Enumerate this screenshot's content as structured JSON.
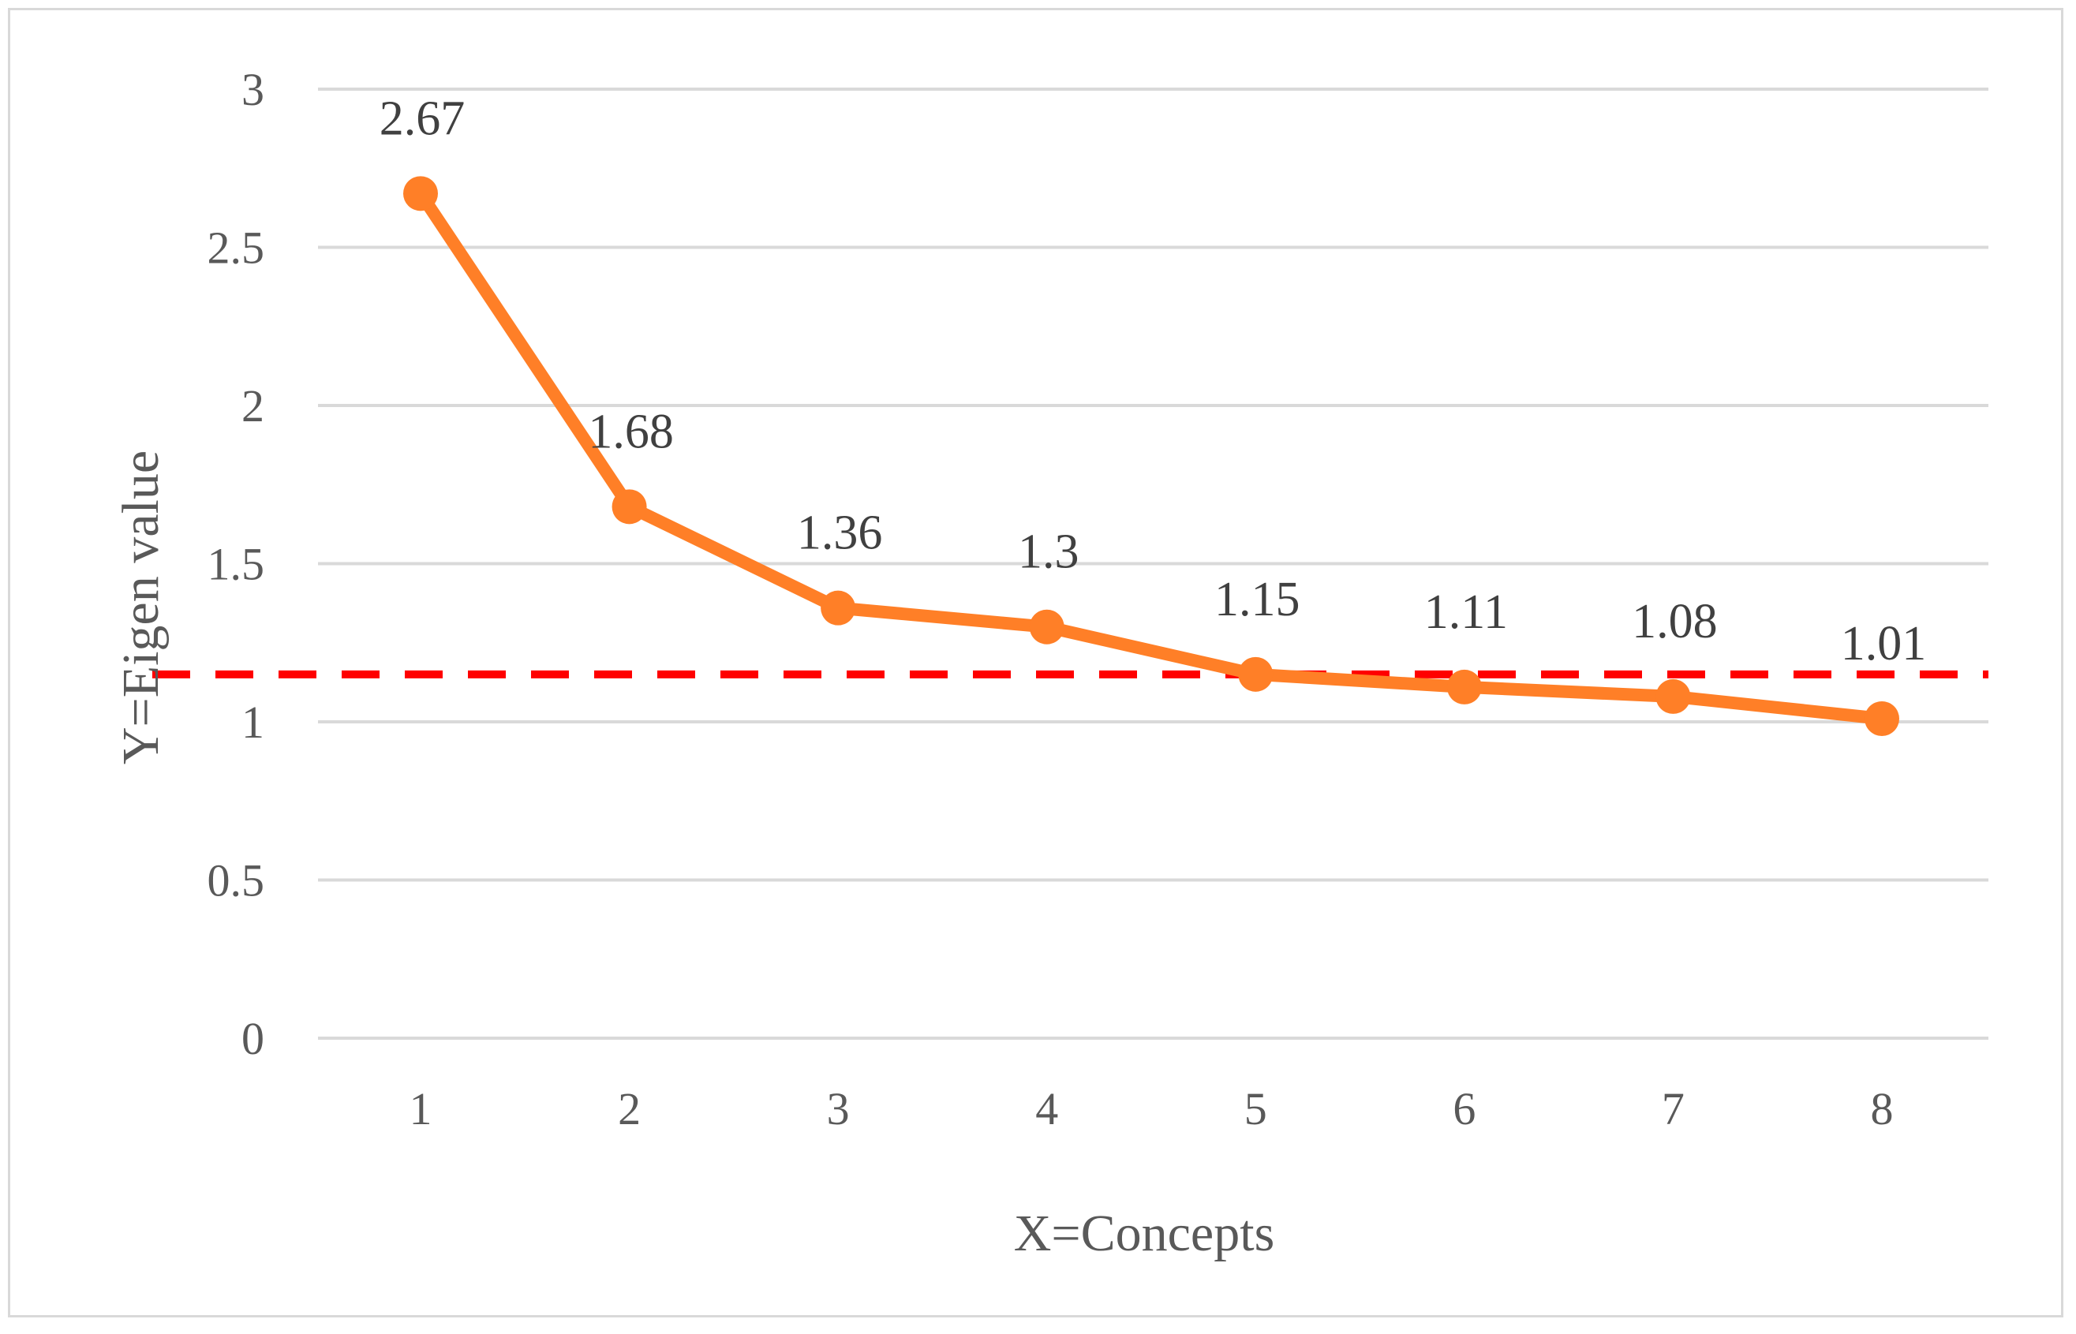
{
  "chart_data": {
    "type": "line",
    "x": [
      1,
      2,
      3,
      4,
      5,
      6,
      7,
      8
    ],
    "series": [
      {
        "values": [
          2.67,
          1.68,
          1.36,
          1.3,
          1.15,
          1.11,
          1.08,
          1.01
        ],
        "color": "#ff7f27"
      }
    ],
    "data_labels": [
      "2.67",
      "1.68",
      "1.36",
      "1.3",
      "1.15",
      "1.11",
      "1.08",
      "1.01"
    ],
    "reference_line": {
      "value": 1.15,
      "color": "#ff0000",
      "style": "dashed"
    },
    "xlabel": "X=Concepts",
    "ylabel": "Y=Eigen value",
    "ylim": [
      0,
      3
    ],
    "yticks": [
      0,
      0.5,
      1,
      1.5,
      2,
      2.5,
      3
    ],
    "grid": true,
    "gridline_color": "#d9d9d9",
    "legend": "none"
  }
}
